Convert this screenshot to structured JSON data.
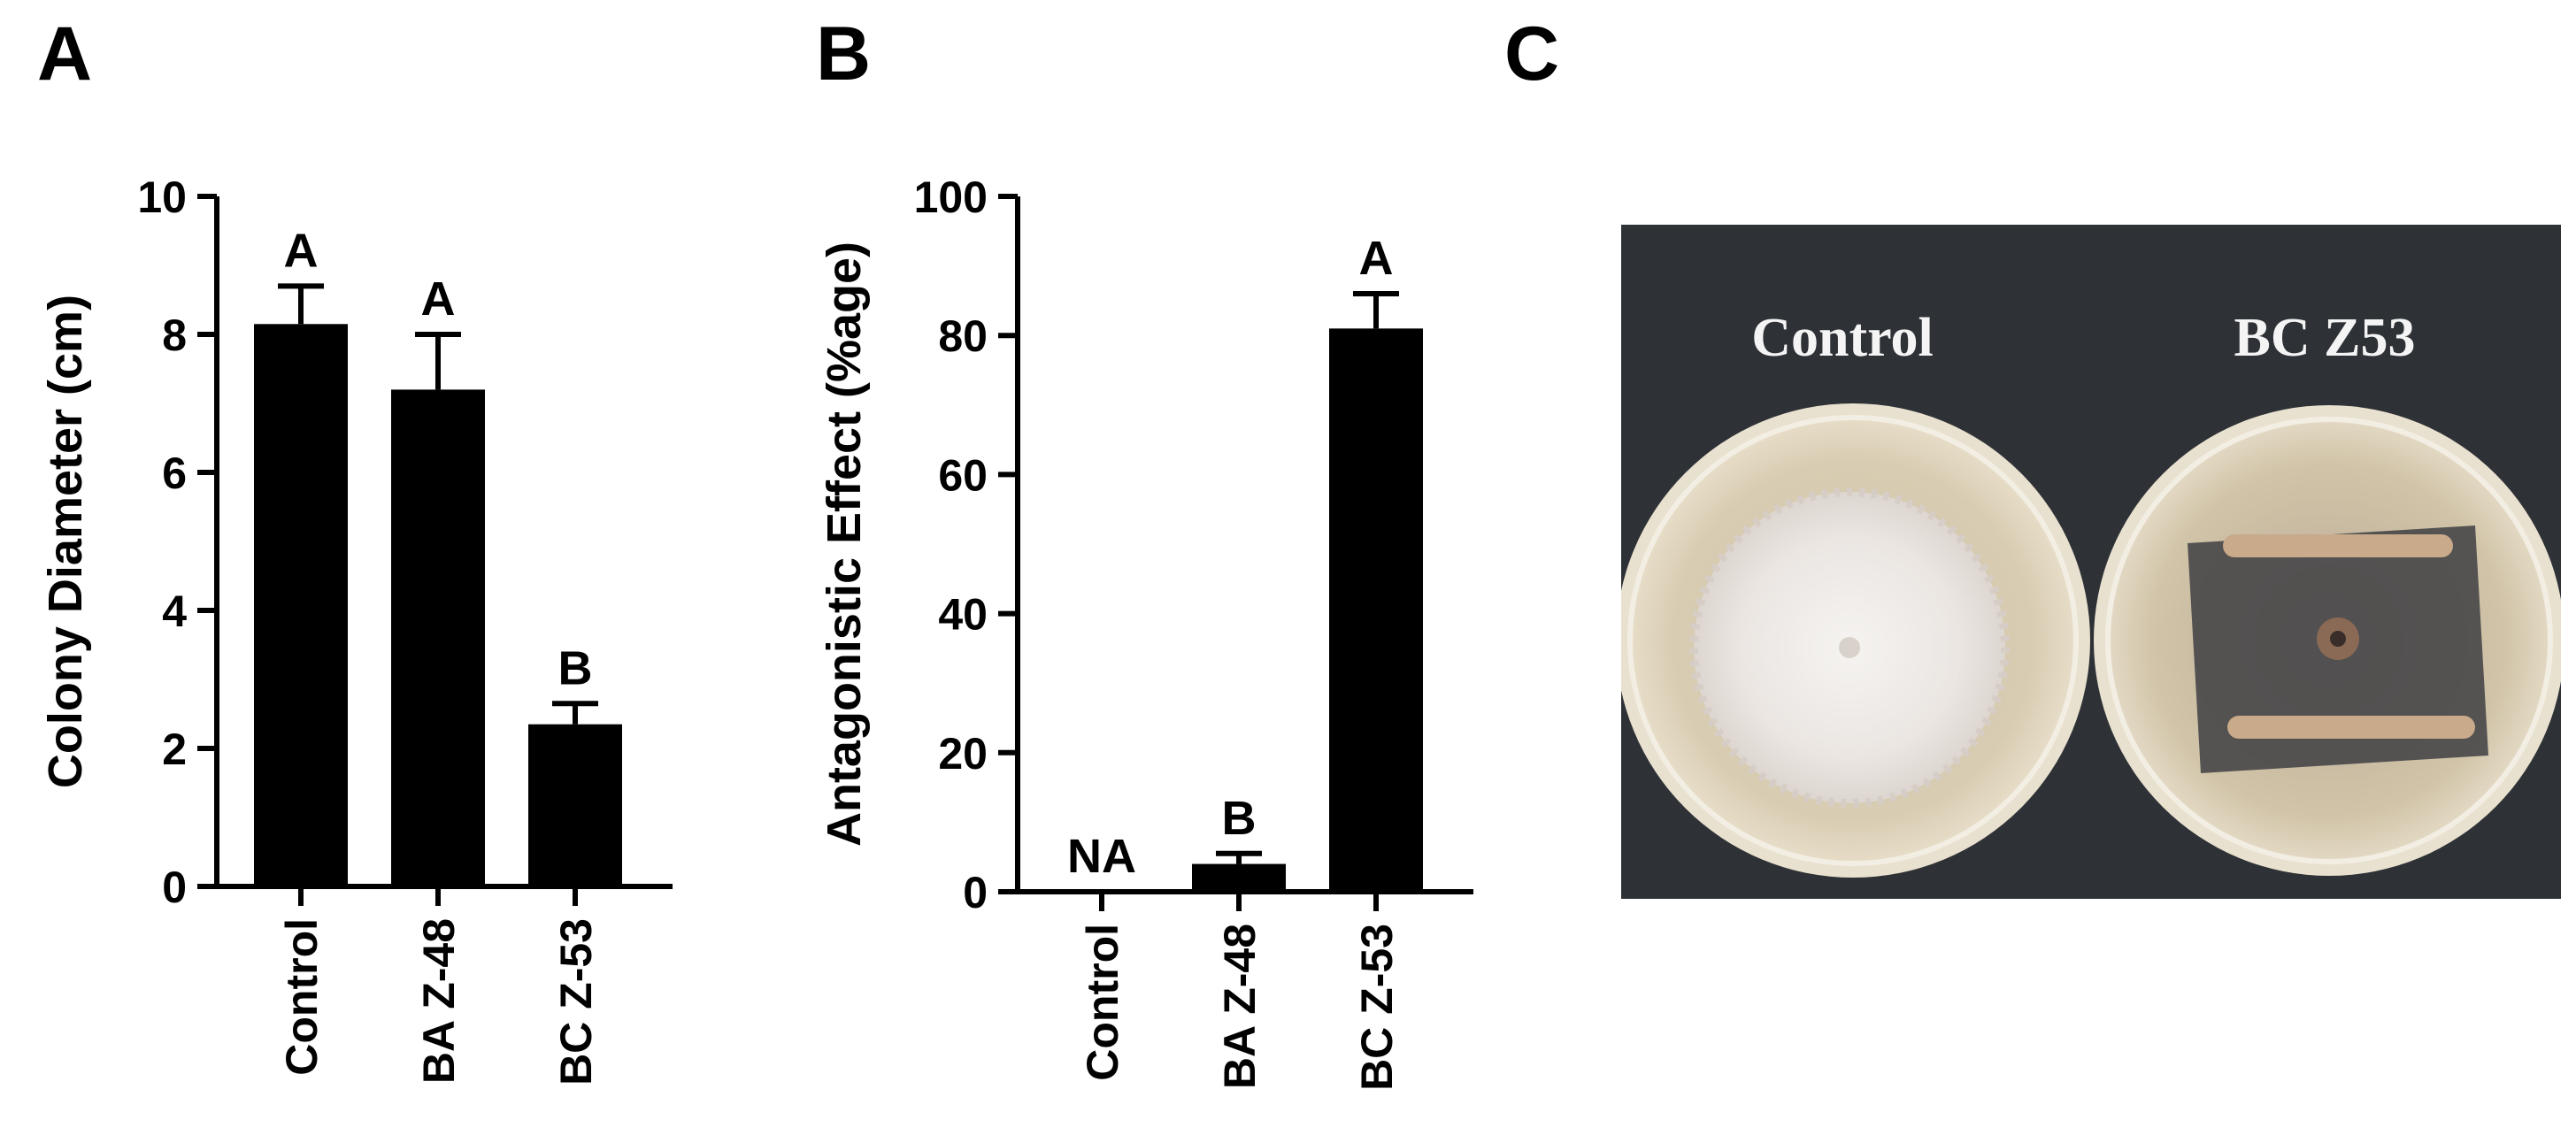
{
  "panels": {
    "a": "A",
    "b": "B",
    "c": "C"
  },
  "chart_data": [
    {
      "type": "bar",
      "ylabel": "Colony Diameter (cm)",
      "categories": [
        "Control",
        "BA Z-48",
        "BC Z-53"
      ],
      "values": [
        8.15,
        7.2,
        2.35
      ],
      "errors": [
        0.55,
        0.8,
        0.3
      ],
      "letters": [
        "A",
        "A",
        "B"
      ],
      "ylim": [
        0,
        10
      ],
      "yticks": [
        0,
        2,
        4,
        6,
        8,
        10
      ],
      "bar_color": "#000000"
    },
    {
      "type": "bar",
      "ylabel": "Antagonistic Effect (%age)",
      "categories": [
        "Control",
        "BA Z-48",
        "BC Z-53"
      ],
      "values": [
        0,
        4,
        81
      ],
      "errors": [
        0,
        1.5,
        5
      ],
      "letters": [
        "NA",
        "B",
        "A"
      ],
      "ylim": [
        0,
        100
      ],
      "yticks": [
        0,
        20,
        40,
        60,
        80,
        100
      ],
      "bar_color": "#000000"
    }
  ],
  "photo": {
    "labels": [
      "Control",
      "BC Z53"
    ],
    "background_color": "#2e3136",
    "plate_color": "#d9cdb3",
    "mycelium_color": "#eeeae6"
  }
}
